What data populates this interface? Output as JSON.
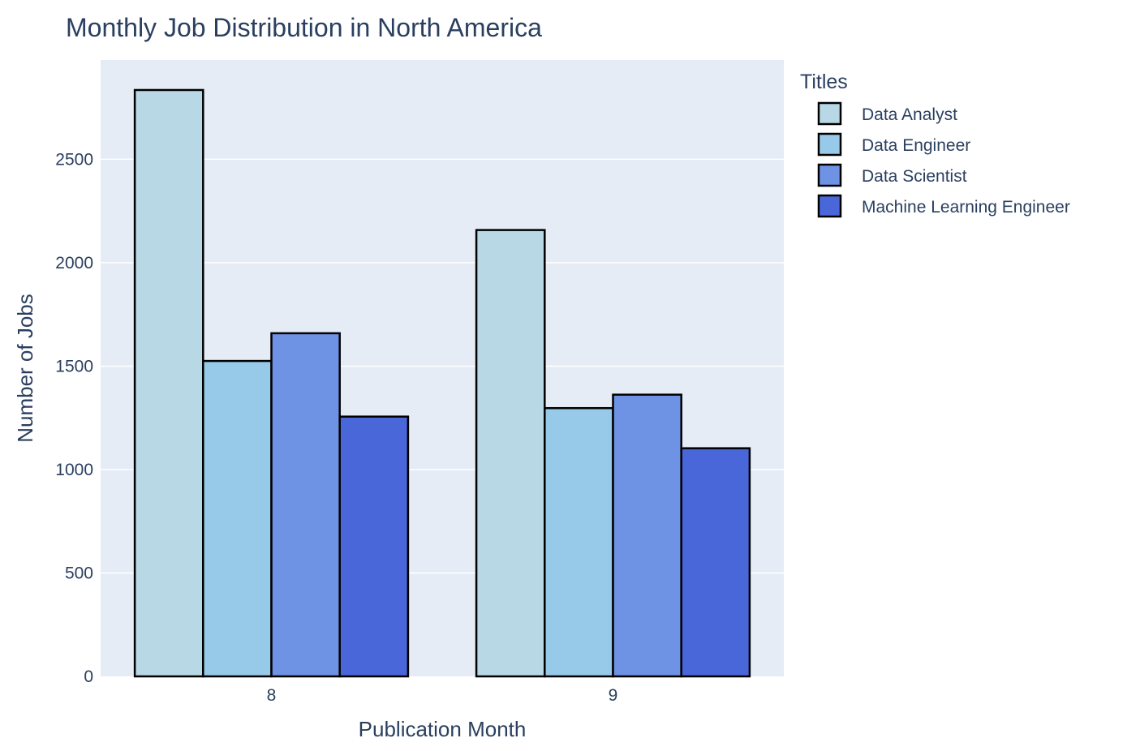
{
  "chart_data": {
    "type": "bar",
    "title": "Monthly Job Distribution in North America",
    "xlabel": "Publication Month",
    "ylabel": "Number of Jobs",
    "categories": [
      "8",
      "9"
    ],
    "ylim": [
      0,
      2980
    ],
    "yticks": [
      0,
      500,
      1000,
      1500,
      2000,
      2500
    ],
    "grid": true,
    "legend": {
      "title": "Titles",
      "placement": "right"
    },
    "series": [
      {
        "name": "Data Analyst",
        "color": "#b7d8e4",
        "values": [
          2835,
          2158
        ]
      },
      {
        "name": "Data Engineer",
        "color": "#97cae8",
        "values": [
          1525,
          1297
        ]
      },
      {
        "name": "Data Scientist",
        "color": "#6e93e5",
        "values": [
          1659,
          1362
        ]
      },
      {
        "name": "Machine Learning Engineer",
        "color": "#4a67d9",
        "values": [
          1256,
          1103
        ]
      }
    ],
    "plot_background": "#e5ecf6",
    "bar_outline": "#000000"
  }
}
